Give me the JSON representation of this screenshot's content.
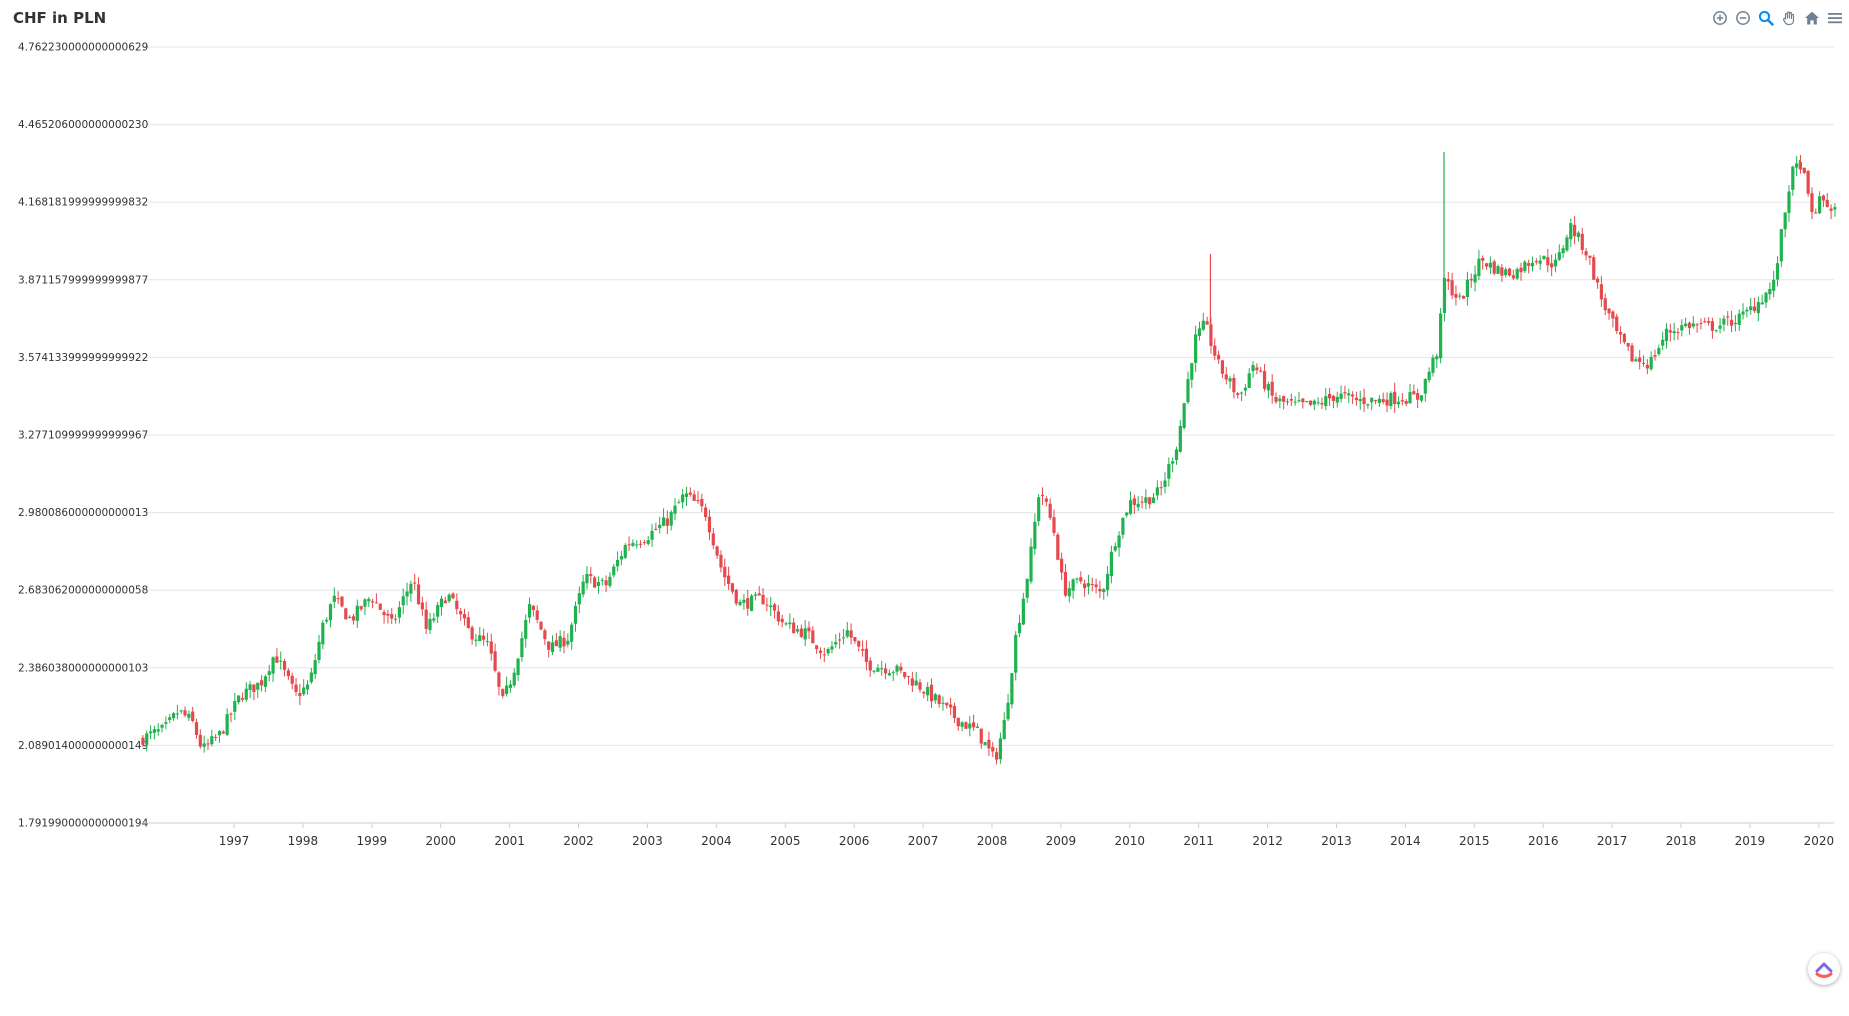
{
  "colors": {
    "up": "#20b24f",
    "down": "#e5484d",
    "grid": "#e5e5e5",
    "axis_text": "#333333"
  },
  "toolbar": {
    "icons": [
      "zoom-in-icon",
      "zoom-out-icon",
      "selection-zoom-icon",
      "pan-icon",
      "reset-zoom-icon",
      "menu-icon"
    ]
  },
  "chart_data": {
    "type": "candlestick",
    "title": "CHF in PLN",
    "xlabel": "",
    "ylabel": "",
    "y_ticks": [
      "1.791990000000000194",
      "2.089014000000000149",
      "2.386038000000000103",
      "2.683062000000000058",
      "2.980086000000000013",
      "3.277109999999999967",
      "3.574133999999999922",
      "3.871157999999999877",
      "4.168181999999999832",
      "4.465206000000000230",
      "4.762230000000000629"
    ],
    "ylim": [
      1.79199,
      4.76223
    ],
    "x_ticks": [
      "1997",
      "1998",
      "1999",
      "2000",
      "2001",
      "2002",
      "2003",
      "2004",
      "2005",
      "2006",
      "2007",
      "2008",
      "2009",
      "2010",
      "2011",
      "2012",
      "2013",
      "2014",
      "2015",
      "2016",
      "2017",
      "2018",
      "2019",
      "2020"
    ],
    "xlim": [
      1996.13,
      2020.7
    ],
    "grid": true,
    "legend": "none",
    "close_path": [
      [
        1996.13,
        2.11
      ],
      [
        1996.3,
        2.13
      ],
      [
        1996.5,
        2.15
      ],
      [
        1996.7,
        2.22
      ],
      [
        1996.9,
        2.18
      ],
      [
        1997.05,
        2.07
      ],
      [
        1997.3,
        2.13
      ],
      [
        1997.6,
        2.28
      ],
      [
        1997.9,
        2.33
      ],
      [
        1998.1,
        2.44
      ],
      [
        1998.4,
        2.28
      ],
      [
        1998.6,
        2.32
      ],
      [
        1998.8,
        2.55
      ],
      [
        1998.95,
        2.65
      ],
      [
        1999.2,
        2.57
      ],
      [
        1999.5,
        2.66
      ],
      [
        1999.8,
        2.55
      ],
      [
        2000.1,
        2.73
      ],
      [
        2000.3,
        2.53
      ],
      [
        2000.6,
        2.67
      ],
      [
        2000.9,
        2.53
      ],
      [
        2001.2,
        2.47
      ],
      [
        2001.4,
        2.25
      ],
      [
        2001.55,
        2.36
      ],
      [
        2001.8,
        2.62
      ],
      [
        2002.1,
        2.46
      ],
      [
        2002.35,
        2.5
      ],
      [
        2002.6,
        2.73
      ],
      [
        2002.9,
        2.7
      ],
      [
        2003.2,
        2.86
      ],
      [
        2003.5,
        2.89
      ],
      [
        2003.8,
        2.95
      ],
      [
        2004.05,
        3.05
      ],
      [
        2004.35,
        2.98
      ],
      [
        2004.6,
        2.75
      ],
      [
        2004.85,
        2.63
      ],
      [
        2005.2,
        2.65
      ],
      [
        2005.5,
        2.55
      ],
      [
        2005.8,
        2.52
      ],
      [
        2006.1,
        2.44
      ],
      [
        2006.4,
        2.53
      ],
      [
        2006.7,
        2.4
      ],
      [
        2007.1,
        2.38
      ],
      [
        2007.4,
        2.33
      ],
      [
        2007.7,
        2.26
      ],
      [
        2008.0,
        2.19
      ],
      [
        2008.3,
        2.14
      ],
      [
        2008.55,
        2.03
      ],
      [
        2008.7,
        2.19
      ],
      [
        2008.85,
        2.5
      ],
      [
        2009.05,
        2.78
      ],
      [
        2009.2,
        3.08
      ],
      [
        2009.4,
        2.92
      ],
      [
        2009.55,
        2.68
      ],
      [
        2009.8,
        2.72
      ],
      [
        2010.1,
        2.67
      ],
      [
        2010.3,
        2.88
      ],
      [
        2010.5,
        3.02
      ],
      [
        2010.75,
        3.03
      ],
      [
        2010.95,
        3.06
      ],
      [
        2011.2,
        3.25
      ],
      [
        2011.45,
        3.64
      ],
      [
        2011.6,
        3.7
      ],
      [
        2011.8,
        3.54
      ],
      [
        2012.1,
        3.42
      ],
      [
        2012.3,
        3.55
      ],
      [
        2012.6,
        3.41
      ],
      [
        2012.9,
        3.39
      ],
      [
        2013.2,
        3.39
      ],
      [
        2013.5,
        3.43
      ],
      [
        2013.8,
        3.41
      ],
      [
        2014.1,
        3.41
      ],
      [
        2014.4,
        3.42
      ],
      [
        2014.7,
        3.42
      ],
      [
        2015.0,
        3.62
      ],
      [
        2015.05,
        3.88
      ],
      [
        2015.3,
        3.79
      ],
      [
        2015.6,
        3.95
      ],
      [
        2015.9,
        3.9
      ],
      [
        2016.1,
        3.9
      ],
      [
        2016.4,
        3.96
      ],
      [
        2016.7,
        3.93
      ],
      [
        2016.9,
        4.08
      ],
      [
        2017.15,
        3.97
      ],
      [
        2017.35,
        3.8
      ],
      [
        2017.6,
        3.65
      ],
      [
        2017.8,
        3.57
      ],
      [
        2018.05,
        3.55
      ],
      [
        2018.3,
        3.67
      ],
      [
        2018.6,
        3.7
      ],
      [
        2018.9,
        3.69
      ],
      [
        2019.1,
        3.7
      ],
      [
        2019.4,
        3.73
      ],
      [
        2019.6,
        3.78
      ],
      [
        2019.85,
        3.85
      ],
      [
        2020.1,
        4.27
      ],
      [
        2020.25,
        4.32
      ],
      [
        2020.4,
        4.12
      ],
      [
        2020.55,
        4.18
      ],
      [
        2020.7,
        4.14
      ]
    ],
    "spikes": [
      [
        2011.65,
        3.97,
        "down"
      ],
      [
        2015.04,
        4.36,
        "up"
      ],
      [
        2020.2,
        4.33,
        "up"
      ]
    ]
  }
}
